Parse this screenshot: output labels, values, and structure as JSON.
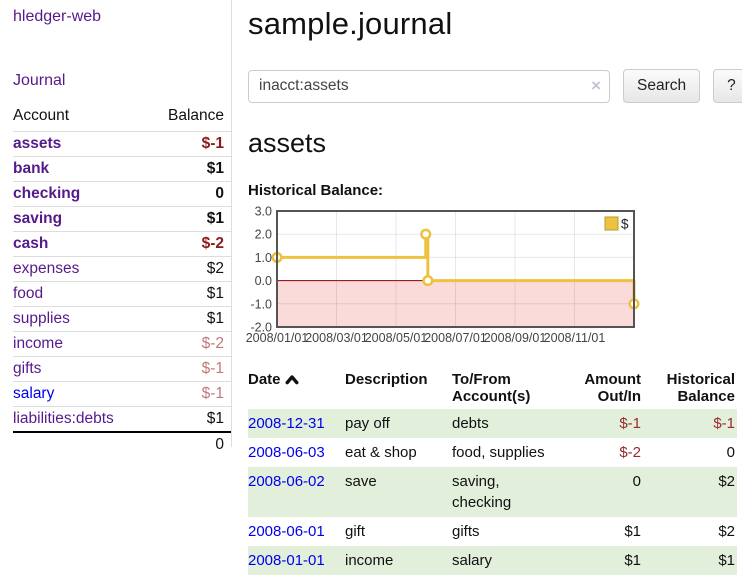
{
  "colors": {
    "link_purple": "#551A8B",
    "link_blue": "#0000EE",
    "negative_dark": "#8b1a1a",
    "negative_light": "#c07979",
    "table_negative": "#9a2b2b",
    "row_shade_green": "#e1efdb",
    "chart_series_gold": "#EDC240",
    "chart_negative_region": "#fbdada",
    "chart_zero_line": "#8b0000",
    "chart_border": "#545454"
  },
  "sidebar": {
    "app_title": "hledger-web",
    "nav_journal": "Journal",
    "accounts_table": {
      "headers": [
        "Account",
        "Balance"
      ],
      "rows": [
        {
          "name": "assets",
          "depth": 1,
          "bold": true,
          "name_tone": "purple",
          "balance": "$-1",
          "balance_tone": "neg-dark"
        },
        {
          "name": "bank",
          "depth": 2,
          "bold": true,
          "name_tone": "purple",
          "balance": "$1",
          "balance_tone": "pos"
        },
        {
          "name": "checking",
          "depth": 3,
          "bold": true,
          "name_tone": "purple",
          "balance": "0",
          "balance_tone": "pos"
        },
        {
          "name": "saving",
          "depth": 3,
          "bold": true,
          "name_tone": "purple",
          "balance": "$1",
          "balance_tone": "pos"
        },
        {
          "name": "cash",
          "depth": 2,
          "bold": true,
          "name_tone": "purple",
          "balance": "$-2",
          "balance_tone": "neg-dark"
        },
        {
          "name": "expenses",
          "depth": 1,
          "bold": false,
          "name_tone": "purple",
          "balance": "$2",
          "balance_tone": "pos"
        },
        {
          "name": "food",
          "depth": 2,
          "bold": false,
          "name_tone": "purple",
          "balance": "$1",
          "balance_tone": "pos"
        },
        {
          "name": "supplies",
          "depth": 2,
          "bold": false,
          "name_tone": "purple",
          "balance": "$1",
          "balance_tone": "pos"
        },
        {
          "name": "income",
          "depth": 1,
          "bold": false,
          "name_tone": "purple",
          "balance": "$-2",
          "balance_tone": "neg-light"
        },
        {
          "name": "gifts",
          "depth": 2,
          "bold": false,
          "name_tone": "purple",
          "balance": "$-1",
          "balance_tone": "neg-light"
        },
        {
          "name": "salary",
          "depth": 2,
          "bold": false,
          "name_tone": "blue",
          "balance": "$-1",
          "balance_tone": "neg-light"
        },
        {
          "name": "liabilities:debts",
          "depth": 1,
          "bold": false,
          "name_tone": "purple",
          "balance": "$1",
          "balance_tone": "pos"
        }
      ],
      "total": "0"
    }
  },
  "main": {
    "title": "sample.journal",
    "search": {
      "value": "inacct:assets",
      "clear_icon": "×",
      "button_label": "Search",
      "help_label": "?"
    },
    "account_heading": "assets",
    "chart_label": "Historical Balance:",
    "register_table": {
      "headers": {
        "date": "Date",
        "description": "Description",
        "accounts": "To/From Account(s)",
        "amount": "Amount Out/In",
        "balance": "Historical Balance"
      },
      "rows": [
        {
          "date": "2008-12-31",
          "description": "pay off",
          "accounts": "debts",
          "amount": "$-1",
          "amount_tone": "neg",
          "balance": "$-1",
          "balance_tone": "neg",
          "shaded": true
        },
        {
          "date": "2008-06-03",
          "description": "eat & shop",
          "accounts": "food, supplies",
          "amount": "$-2",
          "amount_tone": "neg",
          "balance": "0",
          "balance_tone": "pos",
          "shaded": false
        },
        {
          "date": "2008-06-02",
          "description": "save",
          "accounts": "saving, checking",
          "amount": "0",
          "amount_tone": "pos",
          "balance": "$2",
          "balance_tone": "pos",
          "shaded": true
        },
        {
          "date": "2008-06-01",
          "description": "gift",
          "accounts": "gifts",
          "amount": "$1",
          "amount_tone": "pos",
          "balance": "$2",
          "balance_tone": "pos",
          "shaded": false
        },
        {
          "date": "2008-01-01",
          "description": "income",
          "accounts": "salary",
          "amount": "$1",
          "amount_tone": "pos",
          "balance": "$1",
          "balance_tone": "pos",
          "shaded": true
        }
      ]
    }
  },
  "chart_data": {
    "type": "line",
    "steps": true,
    "title": "Historical Balance",
    "legend": {
      "entries": [
        "$"
      ],
      "position": "top-right"
    },
    "series": [
      {
        "name": "$",
        "points": [
          {
            "date": "2008/01/01",
            "month_offset": 0,
            "value": 1,
            "marker": true
          },
          {
            "date": "2008/06/01",
            "month_offset": 5.0,
            "value": 2,
            "marker": true
          },
          {
            "date": "2008/06/02",
            "month_offset": 5.03,
            "value": 2,
            "marker": false
          },
          {
            "date": "2008/06/03",
            "month_offset": 5.07,
            "value": 0,
            "marker": true
          },
          {
            "date": "2008/12/31",
            "month_offset": 12,
            "value": -1,
            "marker": true
          }
        ]
      }
    ],
    "x_axis": {
      "tick_labels": [
        "2008/01/01",
        "2008/03/01",
        "2008/05/01",
        "2008/07/01",
        "2008/09/01",
        "2008/11/01"
      ],
      "tick_month_offsets": [
        0,
        2,
        4,
        6,
        8,
        10
      ],
      "range_months": [
        0,
        12
      ]
    },
    "y_axis": {
      "tick_labels": [
        "3.0",
        "2.0",
        "1.0",
        "0.0",
        "-1.0",
        "-2.0"
      ],
      "ticks": [
        3.0,
        2.0,
        1.0,
        0.0,
        -1.0,
        -2.0
      ],
      "range": [
        -2,
        3
      ]
    },
    "grid": true,
    "negative_region_shaded": true,
    "ylabel": "",
    "xlabel": ""
  }
}
